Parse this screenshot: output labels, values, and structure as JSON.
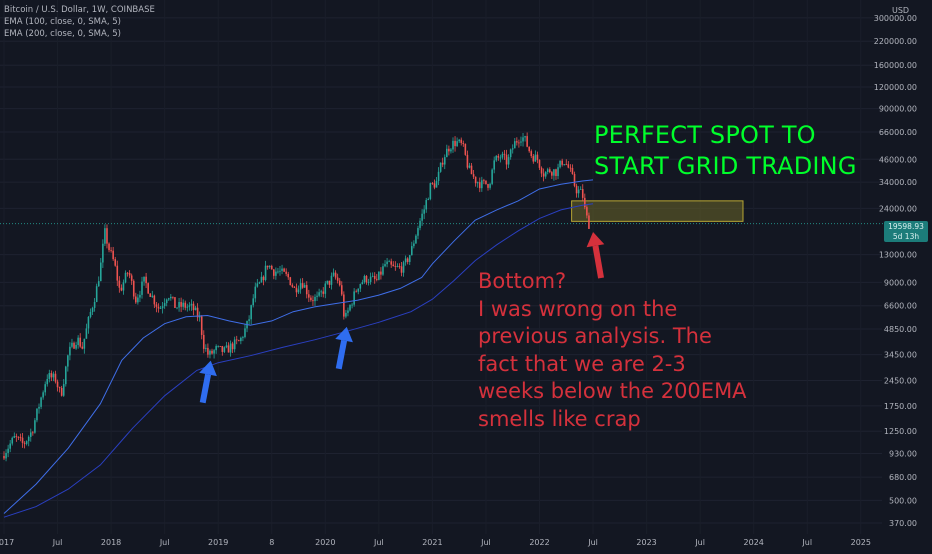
{
  "legend": {
    "symbol": "Bitcoin / U.S. Dollar, 1W, COINBASE",
    "ema100": "EMA (100, close, 0, SMA, 5)",
    "ema200": "EMA (200, close, 0, SMA, 5)"
  },
  "currency": "USD",
  "price_badge": {
    "price": "19598.93",
    "countdown": "5d 13h"
  },
  "annotations": {
    "green": [
      "PERFECT SPOT TO",
      "START GRID TRADING"
    ],
    "red": [
      "Bottom?",
      "I was wrong on the",
      "previous analysis. The",
      "fact that we are 2-3",
      "weeks below the 200EMA",
      "smells like crap"
    ]
  },
  "colors": {
    "background": "#131722",
    "up": "#26a69a",
    "down": "#ef5350",
    "ema100": "#3f6ee8",
    "ema200": "#2a3fc0",
    "zone_fill": "#6b6628",
    "zone_border": "#b8a734",
    "annotation_green": "#00ff2b",
    "annotation_red": "#d5313c",
    "arrow_blue": "#2f6df0",
    "arrow_red": "#d5313c"
  },
  "chart_data": {
    "type": "line",
    "scale": "log",
    "xaxis_ticks": [
      "2017",
      "Jul",
      "2018",
      "Jul",
      "2019",
      "8",
      "2020",
      "Jul",
      "2021",
      "Jul",
      "2022",
      "Jul",
      "2023",
      "Jul",
      "2024",
      "Jul",
      "2025"
    ],
    "yaxis_ticks": [
      370,
      500,
      680,
      930,
      1250,
      1750,
      2450,
      3450,
      4850,
      6600,
      9000,
      13000,
      24000,
      34000,
      46000,
      66000,
      90000,
      120000,
      160000,
      220000,
      300000
    ],
    "ylim": [
      320,
      380000
    ],
    "xlim": [
      2017.0,
      2025.6
    ],
    "price": [
      [
        2017.0,
        900
      ],
      [
        2017.05,
        1000
      ],
      [
        2017.12,
        1150
      ],
      [
        2017.2,
        1050
      ],
      [
        2017.28,
        1250
      ],
      [
        2017.35,
        1800
      ],
      [
        2017.42,
        2600
      ],
      [
        2017.5,
        2500
      ],
      [
        2017.55,
        2000
      ],
      [
        2017.62,
        3500
      ],
      [
        2017.7,
        4300
      ],
      [
        2017.75,
        3800
      ],
      [
        2017.82,
        5800
      ],
      [
        2017.88,
        8000
      ],
      [
        2017.92,
        11000
      ],
      [
        2017.96,
        17500
      ],
      [
        2018.0,
        14000
      ],
      [
        2018.05,
        11500
      ],
      [
        2018.1,
        8000
      ],
      [
        2018.18,
        10500
      ],
      [
        2018.25,
        7200
      ],
      [
        2018.33,
        9200
      ],
      [
        2018.4,
        7500
      ],
      [
        2018.47,
        6300
      ],
      [
        2018.55,
        7800
      ],
      [
        2018.62,
        6500
      ],
      [
        2018.7,
        6600
      ],
      [
        2018.78,
        6400
      ],
      [
        2018.85,
        5500
      ],
      [
        2018.88,
        4000
      ],
      [
        2018.93,
        3400
      ],
      [
        2019.0,
        3700
      ],
      [
        2019.08,
        3600
      ],
      [
        2019.15,
        3900
      ],
      [
        2019.22,
        4100
      ],
      [
        2019.3,
        5300
      ],
      [
        2019.36,
        8000
      ],
      [
        2019.42,
        9000
      ],
      [
        2019.48,
        11500
      ],
      [
        2019.53,
        10500
      ],
      [
        2019.6,
        10300
      ],
      [
        2019.68,
        9500
      ],
      [
        2019.73,
        8200
      ],
      [
        2019.8,
        9200
      ],
      [
        2019.88,
        7300
      ],
      [
        2019.95,
        7200
      ],
      [
        2020.02,
        8500
      ],
      [
        2020.1,
        9800
      ],
      [
        2020.16,
        8700
      ],
      [
        2020.2,
        5400
      ],
      [
        2020.25,
        6600
      ],
      [
        2020.33,
        8800
      ],
      [
        2020.4,
        9500
      ],
      [
        2020.5,
        9200
      ],
      [
        2020.58,
        11500
      ],
      [
        2020.66,
        10800
      ],
      [
        2020.75,
        11000
      ],
      [
        2020.82,
        13500
      ],
      [
        2020.88,
        18500
      ],
      [
        2020.94,
        23500
      ],
      [
        2021.0,
        32000
      ],
      [
        2021.06,
        34000
      ],
      [
        2021.12,
        47000
      ],
      [
        2021.18,
        55000
      ],
      [
        2021.24,
        58000
      ],
      [
        2021.3,
        55000
      ],
      [
        2021.36,
        40000
      ],
      [
        2021.42,
        35000
      ],
      [
        2021.48,
        33000
      ],
      [
        2021.55,
        33500
      ],
      [
        2021.6,
        45000
      ],
      [
        2021.66,
        48000
      ],
      [
        2021.72,
        44000
      ],
      [
        2021.78,
        56000
      ],
      [
        2021.84,
        63000
      ],
      [
        2021.88,
        60000
      ],
      [
        2021.94,
        49000
      ],
      [
        2022.0,
        46000
      ],
      [
        2022.06,
        38000
      ],
      [
        2022.12,
        40000
      ],
      [
        2022.18,
        39000
      ],
      [
        2022.24,
        46000
      ],
      [
        2022.3,
        40000
      ],
      [
        2022.36,
        31000
      ],
      [
        2022.42,
        29000
      ],
      [
        2022.45,
        22000
      ],
      [
        2022.48,
        19598.93
      ]
    ],
    "ema100": [
      [
        2017.0,
        420
      ],
      [
        2017.3,
        620
      ],
      [
        2017.6,
        1000
      ],
      [
        2017.9,
        1800
      ],
      [
        2018.1,
        3200
      ],
      [
        2018.3,
        4300
      ],
      [
        2018.5,
        5200
      ],
      [
        2018.7,
        5700
      ],
      [
        2018.9,
        5800
      ],
      [
        2019.1,
        5400
      ],
      [
        2019.3,
        5100
      ],
      [
        2019.5,
        5400
      ],
      [
        2019.7,
        6100
      ],
      [
        2019.9,
        6500
      ],
      [
        2020.1,
        6800
      ],
      [
        2020.3,
        7100
      ],
      [
        2020.5,
        7600
      ],
      [
        2020.7,
        8300
      ],
      [
        2020.9,
        9600
      ],
      [
        2021.0,
        11500
      ],
      [
        2021.2,
        15500
      ],
      [
        2021.4,
        20500
      ],
      [
        2021.6,
        23500
      ],
      [
        2021.8,
        26500
      ],
      [
        2022.0,
        31000
      ],
      [
        2022.2,
        33000
      ],
      [
        2022.4,
        34500
      ],
      [
        2022.5,
        35000
      ]
    ],
    "ema200": [
      [
        2017.0,
        400
      ],
      [
        2017.3,
        460
      ],
      [
        2017.6,
        580
      ],
      [
        2017.9,
        800
      ],
      [
        2018.2,
        1300
      ],
      [
        2018.5,
        2000
      ],
      [
        2018.8,
        2800
      ],
      [
        2019.0,
        3100
      ],
      [
        2019.3,
        3400
      ],
      [
        2019.6,
        3800
      ],
      [
        2019.9,
        4200
      ],
      [
        2020.2,
        4700
      ],
      [
        2020.5,
        5300
      ],
      [
        2020.8,
        6100
      ],
      [
        2021.0,
        7200
      ],
      [
        2021.2,
        9200
      ],
      [
        2021.4,
        12000
      ],
      [
        2021.6,
        14800
      ],
      [
        2021.8,
        17800
      ],
      [
        2022.0,
        21000
      ],
      [
        2022.2,
        23500
      ],
      [
        2022.4,
        25000
      ],
      [
        2022.5,
        25500
      ]
    ],
    "zone": {
      "x": [
        2022.3,
        2023.9
      ],
      "y": [
        20200,
        26500
      ]
    },
    "current_price": 19598.93,
    "arrows": [
      {
        "color": "blue",
        "tip": [
          2018.93,
          3450
        ]
      },
      {
        "color": "blue",
        "tip": [
          2020.2,
          5400
        ]
      },
      {
        "color": "red",
        "tip": [
          2022.5,
          19000
        ]
      }
    ]
  }
}
